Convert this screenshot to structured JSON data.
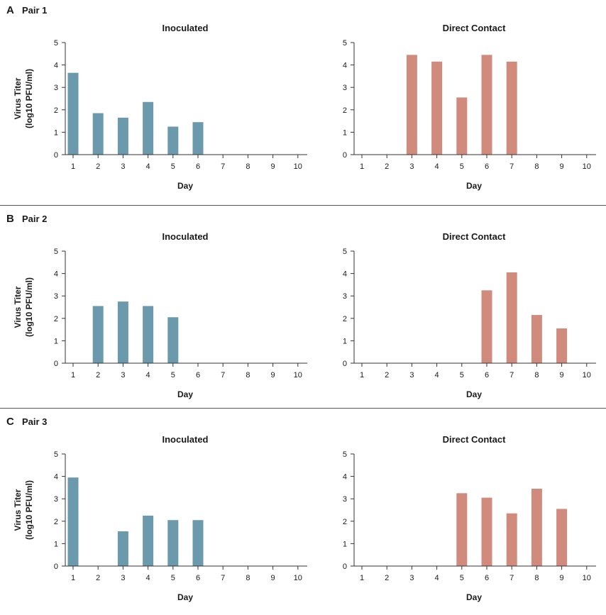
{
  "chart_data": [
    {
      "panel": "A",
      "pair": "Pair 1",
      "title": "Inoculated",
      "type": "bar",
      "categories": [
        "1",
        "2",
        "3",
        "4",
        "5",
        "6",
        "7",
        "8",
        "9",
        "10"
      ],
      "values": [
        3.65,
        1.85,
        1.65,
        2.35,
        1.25,
        1.45,
        0,
        0,
        0,
        0
      ],
      "color": "#6b9aac",
      "xlabel": "Day",
      "ylabel": "Virus Titer",
      "ylabel_sub": "(log10 PFU/ml)",
      "ylim": [
        0,
        5
      ],
      "yticks": [
        "0",
        "1",
        "2",
        "3",
        "4",
        "5"
      ]
    },
    {
      "panel": "A",
      "pair": "Pair 1",
      "title": "Direct Contact",
      "type": "bar",
      "categories": [
        "1",
        "2",
        "3",
        "4",
        "5",
        "6",
        "7",
        "8",
        "9",
        "10"
      ],
      "values": [
        0,
        0,
        4.45,
        4.15,
        2.55,
        4.45,
        4.15,
        0,
        0,
        0
      ],
      "color": "#d08b7c",
      "xlabel": "Day",
      "ylim": [
        0,
        5
      ],
      "yticks": [
        "0",
        "1",
        "2",
        "3",
        "4",
        "5"
      ]
    },
    {
      "panel": "B",
      "pair": "Pair 2",
      "title": "Inoculated",
      "type": "bar",
      "categories": [
        "1",
        "2",
        "3",
        "4",
        "5",
        "6",
        "7",
        "8",
        "9",
        "10"
      ],
      "values": [
        0,
        2.55,
        2.75,
        2.55,
        2.05,
        0,
        0,
        0,
        0,
        0
      ],
      "color": "#6b9aac",
      "xlabel": "Day",
      "ylabel": "Virus Titer",
      "ylabel_sub": "(log10 PFU/ml)",
      "ylim": [
        0,
        5
      ],
      "yticks": [
        "0",
        "1",
        "2",
        "3",
        "4",
        "5"
      ]
    },
    {
      "panel": "B",
      "pair": "Pair 2",
      "title": "Direct Contact",
      "type": "bar",
      "categories": [
        "1",
        "2",
        "3",
        "4",
        "5",
        "6",
        "7",
        "8",
        "9",
        "10"
      ],
      "values": [
        0,
        0,
        0,
        0,
        0,
        3.25,
        4.05,
        2.15,
        1.55,
        0
      ],
      "color": "#d08b7c",
      "xlabel": "Day",
      "ylim": [
        0,
        5
      ],
      "yticks": [
        "0",
        "1",
        "2",
        "3",
        "4",
        "5"
      ]
    },
    {
      "panel": "C",
      "pair": "Pair 3",
      "title": "Inoculated",
      "type": "bar",
      "categories": [
        "1",
        "2",
        "3",
        "4",
        "5",
        "6",
        "7",
        "8",
        "9",
        "10"
      ],
      "values": [
        3.95,
        0,
        1.55,
        2.25,
        2.05,
        2.05,
        0,
        0,
        0,
        0
      ],
      "color": "#6b9aac",
      "xlabel": "Day",
      "ylabel": "Virus Titer",
      "ylabel_sub": "(log10 PFU/ml)",
      "ylim": [
        0,
        5
      ],
      "yticks": [
        "0",
        "1",
        "2",
        "3",
        "4",
        "5"
      ]
    },
    {
      "panel": "C",
      "pair": "Pair 3",
      "title": "Direct Contact",
      "type": "bar",
      "categories": [
        "1",
        "2",
        "3",
        "4",
        "5",
        "6",
        "7",
        "8",
        "9",
        "10"
      ],
      "values": [
        0,
        0,
        0,
        0,
        3.25,
        3.05,
        2.35,
        3.45,
        2.55,
        0
      ],
      "color": "#d08b7c",
      "xlabel": "Day",
      "ylim": [
        0,
        5
      ],
      "yticks": [
        "0",
        "1",
        "2",
        "3",
        "4",
        "5"
      ]
    }
  ],
  "panels": [
    {
      "letter": "A",
      "name": "Pair 1"
    },
    {
      "letter": "B",
      "name": "Pair 2"
    },
    {
      "letter": "C",
      "name": "Pair 3"
    }
  ]
}
